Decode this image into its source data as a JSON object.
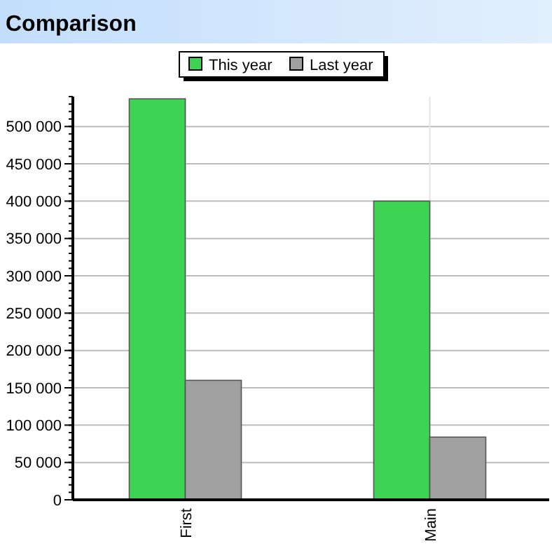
{
  "chart_data": {
    "type": "bar",
    "title": "Comparison",
    "categories": [
      "First",
      "Main"
    ],
    "series": [
      {
        "name": "This year",
        "color": "#3ed453",
        "values": [
          537000,
          400000
        ]
      },
      {
        "name": "Last year",
        "color": "#a0a0a0",
        "values": [
          160000,
          84000
        ]
      }
    ],
    "ylim": [
      0,
      540000
    ],
    "yticks": [
      {
        "value": 0,
        "label": "0"
      },
      {
        "value": 50000,
        "label": "50 000"
      },
      {
        "value": 100000,
        "label": "100 000"
      },
      {
        "value": 150000,
        "label": "150 000"
      },
      {
        "value": 200000,
        "label": "200 000"
      },
      {
        "value": 250000,
        "label": "250 000"
      },
      {
        "value": 300000,
        "label": "300 000"
      },
      {
        "value": 350000,
        "label": "350 000"
      },
      {
        "value": 400000,
        "label": "400 000"
      },
      {
        "value": 450000,
        "label": "450 000"
      },
      {
        "value": 500000,
        "label": "500 000"
      }
    ],
    "grid": true,
    "legend": "top"
  }
}
